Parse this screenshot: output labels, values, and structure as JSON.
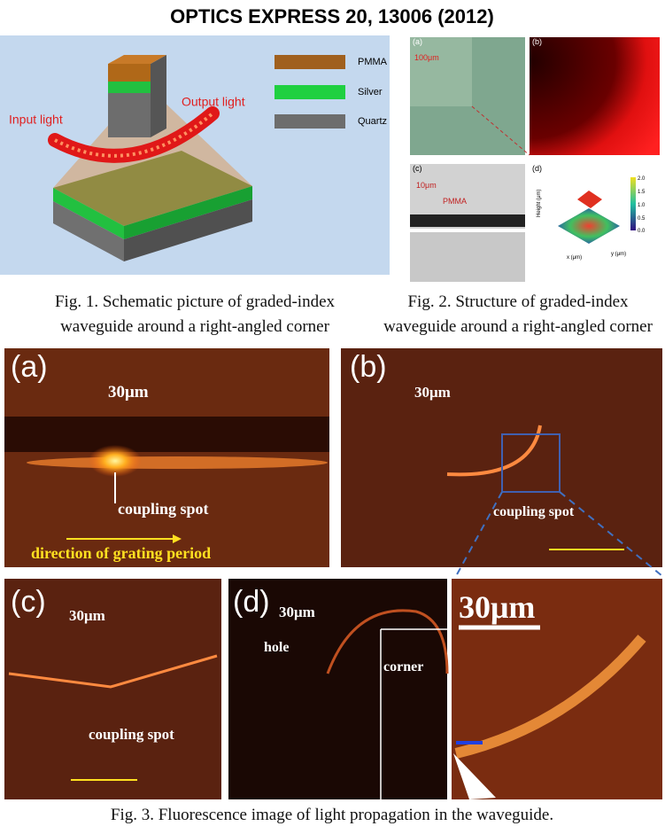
{
  "title": "OPTICS EXPRESS 20, 13006 (2012)",
  "figure1": {
    "labels": {
      "layer1": "PMMA",
      "layer2": "Silver",
      "layer3": "Quartz",
      "input": "Input light",
      "output": "Output light"
    },
    "caption": [
      "Fig. 1. Schematic picture of graded-index",
      "waveguide around a right-angled corner"
    ]
  },
  "figure2": {
    "panels": [
      "(a)",
      "(b)",
      "(c)",
      "(d)"
    ],
    "scale_a": "100μm",
    "scale_c": "10μm",
    "material_c": "PMMA",
    "axis_d": {
      "z": "Height (μm)",
      "x": "x (μm)",
      "y": "y (μm)"
    },
    "colorbar_d": [
      "2.0",
      "1.5",
      "1.0",
      "0.5",
      "0.0"
    ],
    "caption": [
      "Fig. 2. Structure of graded-index",
      "waveguide around a right-angled corner"
    ]
  },
  "figure3": {
    "panels": [
      "(a)",
      "(b)",
      "(c)",
      "(d)"
    ],
    "scale": "30μm",
    "coupling": "coupling spot",
    "direction": "direction of grating period",
    "hole": "hole",
    "corner": "corner",
    "caption": "Fig. 3. Fluorescence image of light propagation in the waveguide."
  }
}
